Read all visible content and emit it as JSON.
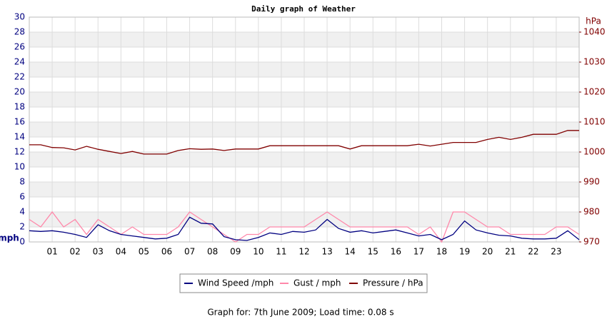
{
  "chart_data": {
    "type": "line",
    "title": "Daily graph of Weather",
    "y_label": "mph",
    "y2_label": "hPa",
    "footer": "Graph for: 7th June 2009; Load time: 0.08 s",
    "x": [
      0,
      0.5,
      1,
      1.5,
      2,
      2.5,
      3,
      3.5,
      4,
      4.5,
      5,
      5.5,
      6,
      6.5,
      7,
      7.5,
      8,
      8.5,
      9,
      9.5,
      10,
      10.5,
      11,
      11.5,
      12,
      12.5,
      13,
      13.5,
      14,
      14.5,
      15,
      15.5,
      16,
      16.5,
      17,
      17.5,
      18,
      18.5,
      19,
      19.5,
      20,
      20.5,
      21,
      21.5,
      22,
      22.5,
      23,
      23.5,
      24
    ],
    "xlim": [
      0,
      24
    ],
    "xticks": [
      {
        "value": 1,
        "label": "01"
      },
      {
        "value": 2,
        "label": "02"
      },
      {
        "value": 3,
        "label": "03"
      },
      {
        "value": 4,
        "label": "04"
      },
      {
        "value": 5,
        "label": "05"
      },
      {
        "value": 6,
        "label": "06"
      },
      {
        "value": 7,
        "label": "07"
      },
      {
        "value": 8,
        "label": "08"
      },
      {
        "value": 9,
        "label": "09"
      },
      {
        "value": 10,
        "label": "10"
      },
      {
        "value": 11,
        "label": "11"
      },
      {
        "value": 12,
        "label": "12"
      },
      {
        "value": 13,
        "label": "13"
      },
      {
        "value": 14,
        "label": "14"
      },
      {
        "value": 15,
        "label": "15"
      },
      {
        "value": 16,
        "label": "16"
      },
      {
        "value": 17,
        "label": "17"
      },
      {
        "value": 18,
        "label": "18"
      },
      {
        "value": 19,
        "label": "19"
      },
      {
        "value": 20,
        "label": "20"
      },
      {
        "value": 21,
        "label": "21"
      },
      {
        "value": 22,
        "label": "22"
      },
      {
        "value": 23,
        "label": "23"
      }
    ],
    "ylim": [
      0,
      30
    ],
    "yticks": [
      0,
      2,
      4,
      6,
      8,
      10,
      12,
      14,
      16,
      18,
      20,
      22,
      24,
      26,
      28,
      30
    ],
    "y2lim": [
      970,
      1045
    ],
    "y2ticks": [
      970,
      980,
      990,
      1000,
      1010,
      1020,
      1030,
      1040
    ],
    "grid": true,
    "series": [
      {
        "name": "Wind Speed /mph",
        "color": "#000080",
        "values": [
          1.5,
          1.4,
          1.5,
          1.3,
          1.0,
          0.6,
          2.3,
          1.5,
          1.0,
          0.8,
          0.6,
          0.4,
          0.5,
          1.0,
          3.3,
          2.5,
          2.4,
          0.7,
          0.3,
          0.2,
          0.6,
          1.2,
          1.0,
          1.4,
          1.3,
          1.6,
          3.0,
          1.8,
          1.3,
          1.5,
          1.2,
          1.4,
          1.6,
          1.2,
          0.8,
          1.0,
          0.3,
          1.0,
          2.8,
          1.6,
          1.2,
          0.9,
          0.8,
          0.5,
          0.4,
          0.4,
          0.5,
          1.5,
          0.3
        ]
      },
      {
        "name": "Gust / mph",
        "color": "#ff88aa",
        "values": [
          3,
          2,
          4,
          2,
          3,
          1,
          3,
          2,
          1,
          2,
          1,
          1,
          1,
          2,
          4,
          3,
          2,
          1,
          0,
          1,
          1,
          2,
          2,
          2,
          2,
          3,
          4,
          3,
          2,
          2,
          2,
          2,
          2,
          2,
          1,
          2,
          0,
          4,
          4,
          3,
          2,
          2,
          1,
          1,
          1,
          1,
          2,
          2,
          1
        ]
      },
      {
        "name": "Pressure / hPa",
        "color": "#800000",
        "axis": "y2",
        "values": [
          1002.4,
          1002.4,
          1001.5,
          1001.4,
          1000.7,
          1001.9,
          1000.9,
          1000.2,
          999.5,
          1000.2,
          999.3,
          999.3,
          999.3,
          1000.5,
          1001.1,
          1000.9,
          1001.0,
          1000.5,
          1001.0,
          1001.0,
          1001.0,
          1002.1,
          1002.1,
          1002.1,
          1002.1,
          1002.1,
          1002.1,
          1002.1,
          1001.0,
          1002.1,
          1002.1,
          1002.1,
          1002.1,
          1002.1,
          1002.6,
          1002.0,
          1002.6,
          1003.2,
          1003.2,
          1003.2,
          1004.2,
          1004.9,
          1004.2,
          1004.9,
          1005.9,
          1005.9,
          1005.9,
          1007.2,
          1007.2
        ]
      }
    ]
  }
}
